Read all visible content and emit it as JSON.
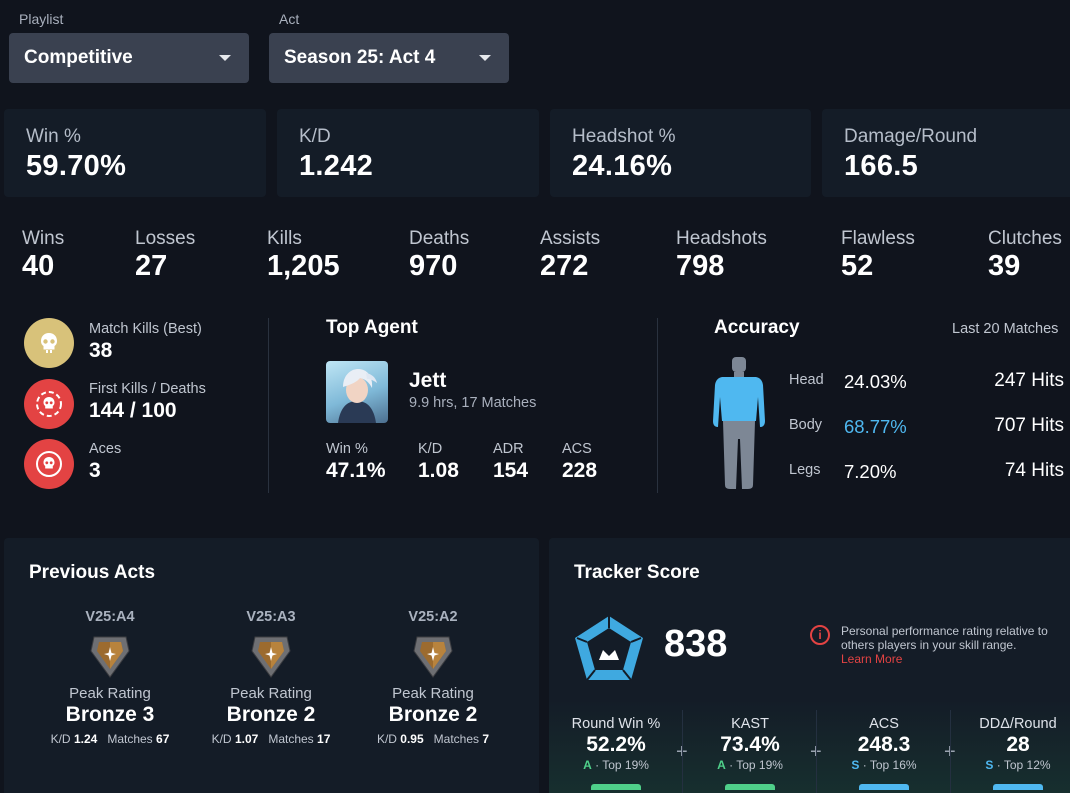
{
  "filters": {
    "playlist_label": "Playlist",
    "playlist_value": "Competitive",
    "act_label": "Act",
    "act_value": "Season 25: Act 4"
  },
  "top_stats": [
    {
      "label": "Win %",
      "value": "59.70%"
    },
    {
      "label": "K/D",
      "value": "1.242"
    },
    {
      "label": "Headshot %",
      "value": "24.16%"
    },
    {
      "label": "Damage/Round",
      "value": "166.5"
    }
  ],
  "row_stats": [
    {
      "label": "Wins",
      "value": "40"
    },
    {
      "label": "Losses",
      "value": "27"
    },
    {
      "label": "Kills",
      "value": "1,205"
    },
    {
      "label": "Deaths",
      "value": "970"
    },
    {
      "label": "Assists",
      "value": "272"
    },
    {
      "label": "Headshots",
      "value": "798"
    },
    {
      "label": "Flawless",
      "value": "52"
    },
    {
      "label": "Clutches",
      "value": "39"
    }
  ],
  "highlights": [
    {
      "label": "Match Kills (Best)",
      "value": "38",
      "icon": "skull-icon",
      "color": "#d8c27a"
    },
    {
      "label": "First Kills / Deaths",
      "value": "144 / 100",
      "icon": "target-skull-icon",
      "color": "#e34343"
    },
    {
      "label": "Aces",
      "value": "3",
      "icon": "ace-skull-icon",
      "color": "#e34343"
    }
  ],
  "top_agent": {
    "title": "Top Agent",
    "name": "Jett",
    "sub": "9.9 hrs, 17 Matches",
    "stats": [
      {
        "label": "Win %",
        "value": "47.1%"
      },
      {
        "label": "K/D",
        "value": "1.08"
      },
      {
        "label": "ADR",
        "value": "154"
      },
      {
        "label": "ACS",
        "value": "228"
      }
    ]
  },
  "accuracy": {
    "title": "Accuracy",
    "period": "Last 20 Matches",
    "rows": [
      {
        "label": "Head",
        "pct": "24.03%",
        "hits": "247 Hits"
      },
      {
        "label": "Body",
        "pct": "68.77%",
        "hits": "707 Hits"
      },
      {
        "label": "Legs",
        "pct": "7.20%",
        "hits": "74 Hits"
      }
    ],
    "highlight_color": "#4fb8f0"
  },
  "previous_acts": {
    "title": "Previous Acts",
    "acts": [
      {
        "code": "V25:A4",
        "peak_label": "Peak Rating",
        "rank": "Bronze 3",
        "kd_label": "K/D",
        "kd": "1.24",
        "matches_label": "Matches",
        "matches": "67"
      },
      {
        "code": "V25:A3",
        "peak_label": "Peak Rating",
        "rank": "Bronze 2",
        "kd_label": "K/D",
        "kd": "1.07",
        "matches_label": "Matches",
        "matches": "17"
      },
      {
        "code": "V25:A2",
        "peak_label": "Peak Rating",
        "rank": "Bronze 2",
        "kd_label": "K/D",
        "kd": "0.95",
        "matches_label": "Matches",
        "matches": "7"
      }
    ]
  },
  "tracker_score": {
    "title": "Tracker Score",
    "score": "838",
    "info_text": "Personal performance rating relative to others players in your skill range.",
    "learn_more": "Learn More",
    "metrics": [
      {
        "label": "Round Win %",
        "value": "52.2%",
        "grade": "A",
        "sub": "· Top 19%",
        "color": "#4fd08a"
      },
      {
        "label": "KAST",
        "value": "73.4%",
        "grade": "A",
        "sub": "· Top 19%",
        "color": "#4fd08a"
      },
      {
        "label": "ACS",
        "value": "248.3",
        "grade": "S",
        "sub": "· Top 16%",
        "color": "#4fb8f0"
      },
      {
        "label": "DDΔ/Round",
        "value": "28",
        "grade": "S",
        "sub": "· Top 12%",
        "color": "#4fb8f0"
      }
    ],
    "plus": "+"
  }
}
